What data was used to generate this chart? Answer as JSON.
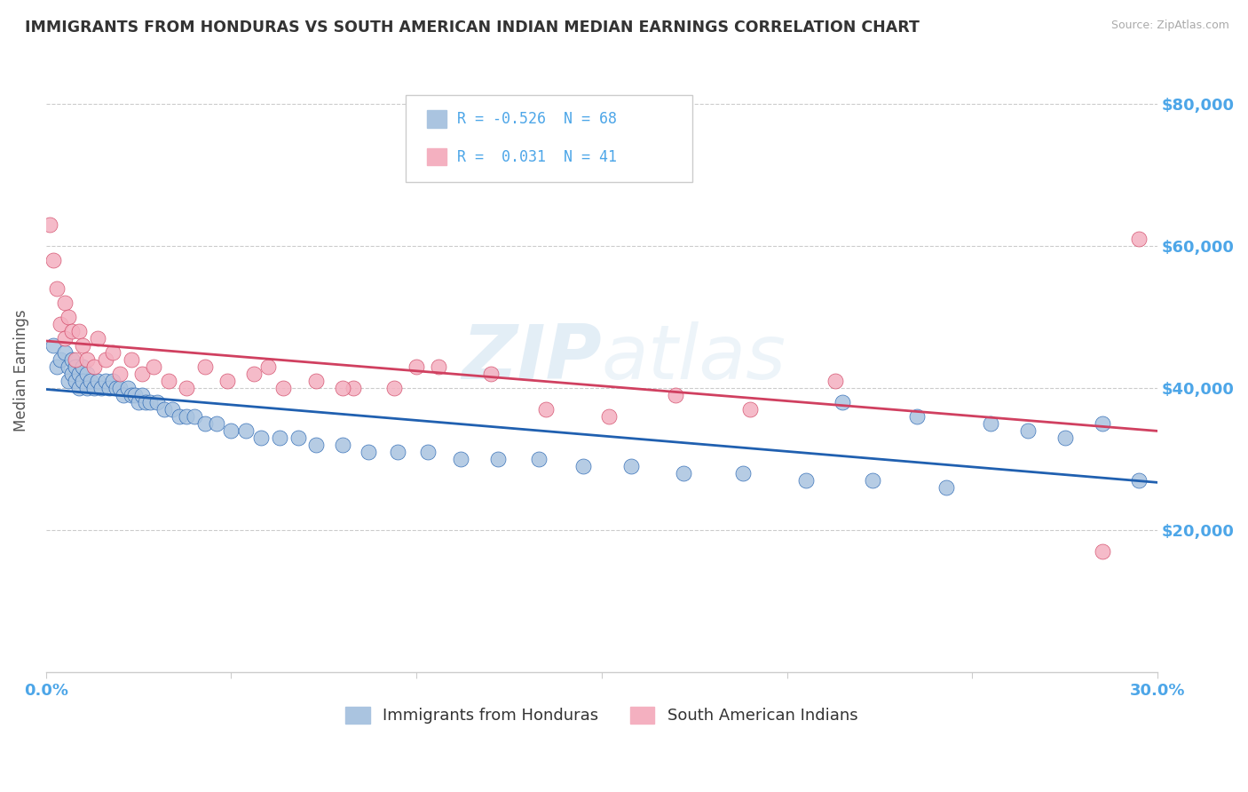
{
  "title": "IMMIGRANTS FROM HONDURAS VS SOUTH AMERICAN INDIAN MEDIAN EARNINGS CORRELATION CHART",
  "source": "Source: ZipAtlas.com",
  "ylabel": "Median Earnings",
  "xlim": [
    0.0,
    0.3
  ],
  "ylim": [
    0,
    85000
  ],
  "yticks": [
    20000,
    40000,
    60000,
    80000
  ],
  "ytick_labels": [
    "$20,000",
    "$40,000",
    "$60,000",
    "$80,000"
  ],
  "xticks": [
    0.0,
    0.05,
    0.1,
    0.15,
    0.2,
    0.25,
    0.3
  ],
  "xtick_labels": [
    "0.0%",
    "",
    "",
    "",
    "",
    "",
    "30.0%"
  ],
  "blue_color": "#aac4e0",
  "pink_color": "#f4b0c0",
  "blue_line_color": "#2060b0",
  "pink_line_color": "#d04060",
  "axis_label_color": "#4da6e8",
  "watermark_text": "ZIPAtlas",
  "legend_R1": "-0.526",
  "legend_N1": "68",
  "legend_R2": "0.031",
  "legend_N2": "41",
  "legend_label1": "Immigrants from Honduras",
  "legend_label2": "South American Indians",
  "blue_x": [
    0.002,
    0.003,
    0.004,
    0.005,
    0.006,
    0.006,
    0.007,
    0.007,
    0.008,
    0.008,
    0.009,
    0.009,
    0.01,
    0.01,
    0.011,
    0.011,
    0.012,
    0.013,
    0.014,
    0.015,
    0.016,
    0.017,
    0.018,
    0.019,
    0.02,
    0.021,
    0.022,
    0.023,
    0.024,
    0.025,
    0.026,
    0.027,
    0.028,
    0.03,
    0.032,
    0.034,
    0.036,
    0.038,
    0.04,
    0.043,
    0.046,
    0.05,
    0.054,
    0.058,
    0.063,
    0.068,
    0.073,
    0.08,
    0.087,
    0.095,
    0.103,
    0.112,
    0.122,
    0.133,
    0.145,
    0.158,
    0.172,
    0.188,
    0.205,
    0.223,
    0.243,
    0.215,
    0.235,
    0.255,
    0.265,
    0.275,
    0.285,
    0.295
  ],
  "blue_y": [
    46000,
    43000,
    44000,
    45000,
    43000,
    41000,
    44000,
    42000,
    43000,
    41000,
    42000,
    40000,
    43000,
    41000,
    42000,
    40000,
    41000,
    40000,
    41000,
    40000,
    41000,
    40000,
    41000,
    40000,
    40000,
    39000,
    40000,
    39000,
    39000,
    38000,
    39000,
    38000,
    38000,
    38000,
    37000,
    37000,
    36000,
    36000,
    36000,
    35000,
    35000,
    34000,
    34000,
    33000,
    33000,
    33000,
    32000,
    32000,
    31000,
    31000,
    31000,
    30000,
    30000,
    30000,
    29000,
    29000,
    28000,
    28000,
    27000,
    27000,
    26000,
    38000,
    36000,
    35000,
    34000,
    33000,
    35000,
    27000
  ],
  "pink_x": [
    0.001,
    0.002,
    0.003,
    0.004,
    0.005,
    0.005,
    0.006,
    0.007,
    0.008,
    0.009,
    0.01,
    0.011,
    0.013,
    0.014,
    0.016,
    0.018,
    0.02,
    0.023,
    0.026,
    0.029,
    0.033,
    0.038,
    0.043,
    0.049,
    0.056,
    0.064,
    0.073,
    0.083,
    0.094,
    0.106,
    0.12,
    0.135,
    0.152,
    0.17,
    0.19,
    0.213,
    0.06,
    0.08,
    0.1,
    0.285,
    0.295
  ],
  "pink_y": [
    63000,
    58000,
    54000,
    49000,
    52000,
    47000,
    50000,
    48000,
    44000,
    48000,
    46000,
    44000,
    43000,
    47000,
    44000,
    45000,
    42000,
    44000,
    42000,
    43000,
    41000,
    40000,
    43000,
    41000,
    42000,
    40000,
    41000,
    40000,
    40000,
    43000,
    42000,
    37000,
    36000,
    39000,
    37000,
    41000,
    43000,
    40000,
    43000,
    17000,
    61000
  ],
  "background_color": "#ffffff",
  "grid_color": "#cccccc"
}
